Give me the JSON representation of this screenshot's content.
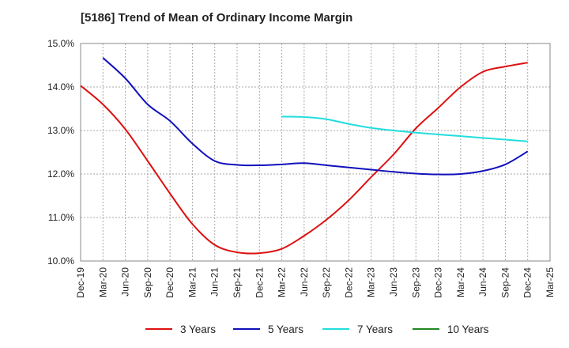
{
  "chart_data": {
    "type": "line",
    "title": "[5186]  Trend of Mean of Ordinary Income Margin",
    "xlabel": "",
    "ylabel": "",
    "ylim": [
      10.0,
      15.0
    ],
    "y_ticks": [
      "10.0%",
      "11.0%",
      "12.0%",
      "13.0%",
      "14.0%",
      "15.0%"
    ],
    "x_ticks": [
      "Dec-19",
      "Mar-20",
      "Jun-20",
      "Sep-20",
      "Dec-20",
      "Mar-21",
      "Jun-21",
      "Sep-21",
      "Dec-21",
      "Mar-22",
      "Jun-22",
      "Sep-22",
      "Dec-22",
      "Mar-23",
      "Jun-23",
      "Sep-23",
      "Dec-23",
      "Mar-24",
      "Jun-24",
      "Sep-24",
      "Dec-24",
      "Mar-25"
    ],
    "grid": true,
    "legend_position": "bottom",
    "series": [
      {
        "name": "3 Years",
        "color": "#dd1111",
        "x": [
          "Dec-19",
          "Mar-20",
          "Jun-20",
          "Sep-20",
          "Dec-20",
          "Mar-21",
          "Jun-21",
          "Sep-21",
          "Dec-21",
          "Mar-22",
          "Jun-22",
          "Sep-22",
          "Dec-22",
          "Mar-23",
          "Jun-23",
          "Sep-23",
          "Dec-23",
          "Mar-24",
          "Jun-24",
          "Sep-24",
          "Dec-24"
        ],
        "values": [
          14.03,
          13.6,
          13.03,
          12.3,
          11.55,
          10.85,
          10.37,
          10.2,
          10.18,
          10.28,
          10.58,
          10.95,
          11.4,
          11.93,
          12.45,
          13.05,
          13.52,
          14.0,
          14.35,
          14.47,
          14.56
        ]
      },
      {
        "name": "5 Years",
        "color": "#1111bb",
        "x": [
          "Mar-20",
          "Jun-20",
          "Sep-20",
          "Dec-20",
          "Mar-21",
          "Jun-21",
          "Sep-21",
          "Dec-21",
          "Mar-22",
          "Jun-22",
          "Sep-22",
          "Dec-22",
          "Mar-23",
          "Jun-23",
          "Sep-23",
          "Dec-23",
          "Mar-24",
          "Jun-24",
          "Sep-24",
          "Dec-24"
        ],
        "values": [
          14.67,
          14.2,
          13.6,
          13.22,
          12.7,
          12.3,
          12.21,
          12.2,
          12.22,
          12.25,
          12.2,
          12.15,
          12.1,
          12.05,
          12.01,
          11.99,
          12.0,
          12.07,
          12.22,
          12.52
        ]
      },
      {
        "name": "7 Years",
        "color": "#22dddd",
        "x": [
          "Mar-22",
          "Jun-22",
          "Sep-22",
          "Dec-22",
          "Mar-23",
          "Jun-23",
          "Sep-23",
          "Dec-23",
          "Mar-24",
          "Jun-24",
          "Sep-24",
          "Dec-24"
        ],
        "values": [
          13.32,
          13.31,
          13.26,
          13.15,
          13.06,
          13.0,
          12.95,
          12.91,
          12.87,
          12.83,
          12.79,
          12.75
        ]
      },
      {
        "name": "10 Years",
        "color": "#228822",
        "x": [],
        "values": []
      }
    ]
  }
}
